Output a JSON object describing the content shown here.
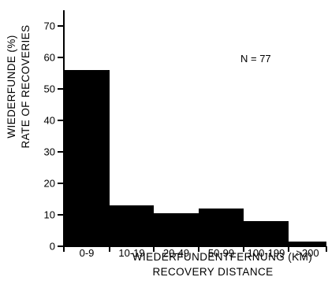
{
  "chart_data": {
    "type": "bar",
    "categories": [
      "0-9",
      "10-19",
      "20-49",
      "50-99",
      "100-199",
      ">200"
    ],
    "values": [
      56,
      13,
      10.5,
      12,
      8,
      1.5
    ],
    "xlabel": [
      "WIEDERFUNDENTFERNUNG (KM)",
      "RECOVERY DISTANCE"
    ],
    "ylabel": [
      "WIEDERFUNDE (%)",
      "RATE OF RECOVERIES"
    ],
    "ylim": [
      0,
      75
    ],
    "yticks": [
      0,
      10,
      20,
      30,
      40,
      50,
      60,
      70
    ],
    "annotation": "N = 77",
    "grid": false,
    "bar_color": "#000000"
  }
}
